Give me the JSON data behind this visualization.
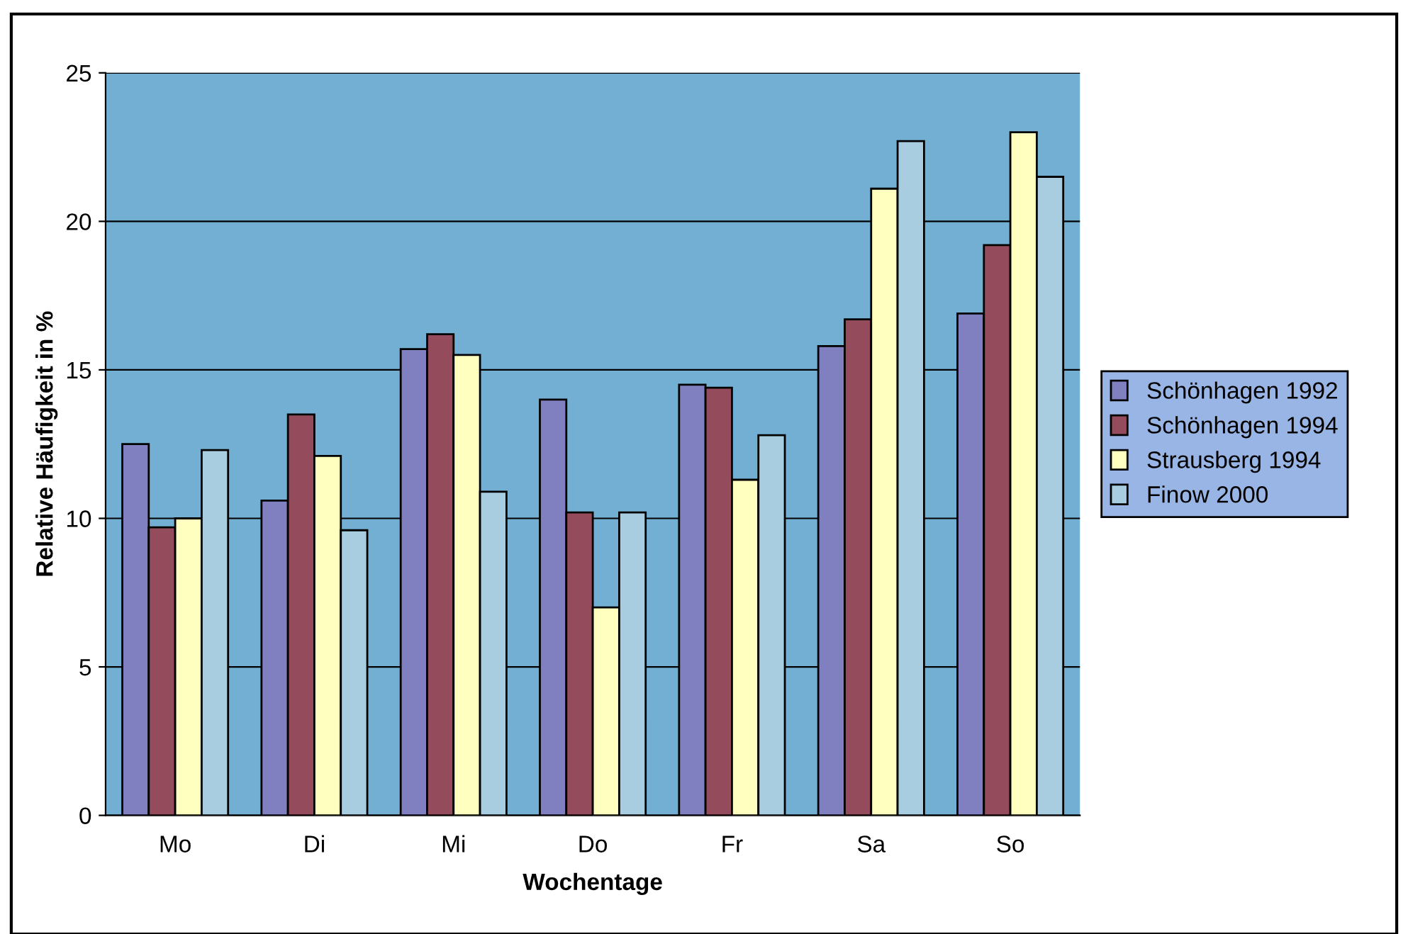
{
  "chart_data": {
    "type": "bar",
    "xlabel": "Wochentage",
    "ylabel": "Relative Häufigkeit in %",
    "categories": [
      "Mo",
      "Di",
      "Mi",
      "Do",
      "Fr",
      "Sa",
      "So"
    ],
    "series": [
      {
        "name": "Schönhagen 1992",
        "color": "#8080c0",
        "values": [
          12.5,
          10.6,
          15.7,
          14.0,
          14.5,
          15.8,
          16.9
        ]
      },
      {
        "name": "Schönhagen 1994",
        "color": "#944c5c",
        "values": [
          9.7,
          13.5,
          16.2,
          10.2,
          14.4,
          16.7,
          19.2
        ]
      },
      {
        "name": "Strausberg 1994",
        "color": "#ffffc0",
        "values": [
          10.0,
          12.1,
          15.5,
          7.0,
          11.3,
          21.1,
          23.0
        ]
      },
      {
        "name": "Finow 2000",
        "color": "#a8cce0",
        "values": [
          12.3,
          9.6,
          10.9,
          10.2,
          12.8,
          22.7,
          21.5
        ]
      }
    ],
    "ylim": [
      0,
      25
    ],
    "yticks": [
      0,
      5,
      10,
      15,
      20,
      25
    ],
    "grid": "y",
    "legend": "right"
  }
}
